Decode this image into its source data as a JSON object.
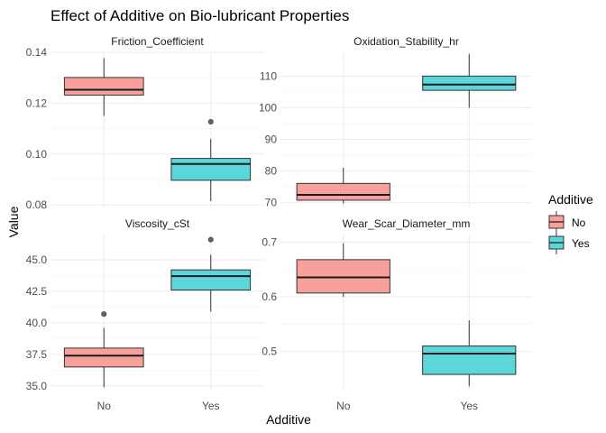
{
  "chart_data": {
    "type": "boxplot",
    "title": "Effect of Additive on Bio-lubricant Properties",
    "xlabel": "Additive",
    "ylabel": "Value",
    "categories": [
      "No",
      "Yes"
    ],
    "legend": {
      "title": "Additive",
      "position": "right",
      "entries": [
        {
          "label": "No",
          "color": "#F8A19C"
        },
        {
          "label": "Yes",
          "color": "#5BD6D9"
        }
      ]
    },
    "facet_layout": "2x2 grid, free y scales",
    "panels": [
      {
        "name": "Friction_Coefficient",
        "ylim": [
          0.079,
          0.14
        ],
        "yticks": [
          0.08,
          0.1,
          0.12,
          0.14
        ],
        "ytick_labels": [
          "0.08",
          "0.10",
          "0.12",
          "0.14"
        ],
        "boxes": [
          {
            "category": "No",
            "whisker_low": 0.115,
            "q1": 0.1232,
            "median": 0.1253,
            "q3": 0.1301,
            "whisker_high": 0.1377,
            "outliers": []
          },
          {
            "category": "Yes",
            "whisker_low": 0.0815,
            "q1": 0.0897,
            "median": 0.0961,
            "q3": 0.0983,
            "whisker_high": 0.106,
            "outliers": [
              0.1127
            ]
          }
        ]
      },
      {
        "name": "Oxidation_Stability_hr",
        "ylim": [
          68.5,
          117.5
        ],
        "yticks": [
          70,
          80,
          90,
          100,
          110
        ],
        "ytick_labels": [
          "70",
          "80",
          "90",
          "100",
          "110"
        ],
        "boxes": [
          {
            "category": "No",
            "whisker_low": 69.8,
            "q1": 70.8,
            "median": 72.5,
            "q3": 76.1,
            "whisker_high": 81.0,
            "outliers": []
          },
          {
            "category": "Yes",
            "whisker_low": 100.0,
            "q1": 105.5,
            "median": 107.3,
            "q3": 110.0,
            "whisker_high": 117.0,
            "outliers": []
          }
        ]
      },
      {
        "name": "Viscosity_cSt",
        "ylim": [
          34.7,
          47.0
        ],
        "yticks": [
          35.0,
          37.5,
          40.0,
          42.5,
          45.0
        ],
        "ytick_labels": [
          "35.0",
          "37.5",
          "40.0",
          "42.5",
          "45.0"
        ],
        "boxes": [
          {
            "category": "No",
            "whisker_low": 34.9,
            "q1": 36.5,
            "median": 37.4,
            "q3": 38.0,
            "whisker_high": 39.6,
            "outliers": [
              40.7
            ]
          },
          {
            "category": "Yes",
            "whisker_low": 40.9,
            "q1": 42.6,
            "median": 43.7,
            "q3": 44.2,
            "whisker_high": 45.4,
            "outliers": [
              46.6
            ]
          }
        ]
      },
      {
        "name": "Wear_Scar_Diameter_mm",
        "ylim": [
          0.43,
          0.714
        ],
        "yticks": [
          0.5,
          0.6,
          0.7
        ],
        "ytick_labels": [
          "0.5",
          "0.6",
          "0.7"
        ],
        "boxes": [
          {
            "category": "No",
            "whisker_low": 0.6,
            "q1": 0.607,
            "median": 0.6355,
            "q3": 0.668,
            "whisker_high": 0.698,
            "outliers": []
          },
          {
            "category": "Yes",
            "whisker_low": 0.436,
            "q1": 0.458,
            "median": 0.496,
            "q3": 0.51,
            "whisker_high": 0.557,
            "outliers": []
          }
        ]
      }
    ]
  }
}
